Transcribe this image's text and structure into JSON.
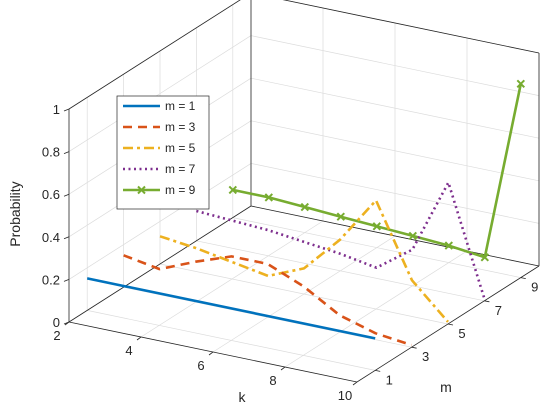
{
  "chart_data": {
    "type": "line",
    "projection": "3d",
    "xlabel": "k",
    "ylabel": "m",
    "zlabel": "Probability",
    "xlim": [
      2,
      10
    ],
    "ylim": [
      0,
      10
    ],
    "zlim": [
      0,
      1
    ],
    "x_ticks": [
      "2",
      "4",
      "6",
      "8",
      "10"
    ],
    "y_ticks": [
      "1",
      "3",
      "5",
      "7",
      "9"
    ],
    "z_ticks": [
      "0",
      "0.2",
      "0.4",
      "0.6",
      "0.8",
      "1"
    ],
    "grid": true,
    "legend_position": "top-left",
    "series": [
      {
        "name": "m = 1",
        "m": 1,
        "color": "#0072BD",
        "style": "solid",
        "k": [
          2,
          10
        ],
        "p": [
          0.15,
          0.15
        ]
      },
      {
        "name": "m = 3",
        "m": 3,
        "color": "#D95319",
        "style": "dashed",
        "k": [
          2,
          3,
          4,
          5,
          6,
          7,
          8,
          9,
          10
        ],
        "p": [
          0.15,
          0.12,
          0.19,
          0.25,
          0.25,
          0.18,
          0.08,
          0.03,
          0.01
        ]
      },
      {
        "name": "m = 5",
        "m": 5,
        "color": "#EDB120",
        "style": "dashdot",
        "k": [
          2,
          3,
          4,
          5,
          6,
          7,
          8,
          9,
          10
        ],
        "p": [
          0.13,
          0.11,
          0.08,
          0.05,
          0.12,
          0.29,
          0.51,
          0.17,
          0.01
        ]
      },
      {
        "name": "m = 7",
        "m": 7,
        "color": "#7E2F8E",
        "style": "dotted",
        "k": [
          2,
          3,
          4,
          5,
          6,
          7,
          8,
          9,
          10
        ],
        "p": [
          0.14,
          0.13,
          0.12,
          0.1,
          0.08,
          0.05,
          0.17,
          0.52,
          0.01
        ]
      },
      {
        "name": "m = 9",
        "m": 9,
        "color": "#77AC30",
        "style": "solid-x",
        "k": [
          2,
          3,
          4,
          5,
          6,
          7,
          8,
          9,
          10
        ],
        "p": [
          0.13,
          0.13,
          0.12,
          0.11,
          0.1,
          0.09,
          0.08,
          0.06,
          0.91
        ]
      }
    ]
  }
}
